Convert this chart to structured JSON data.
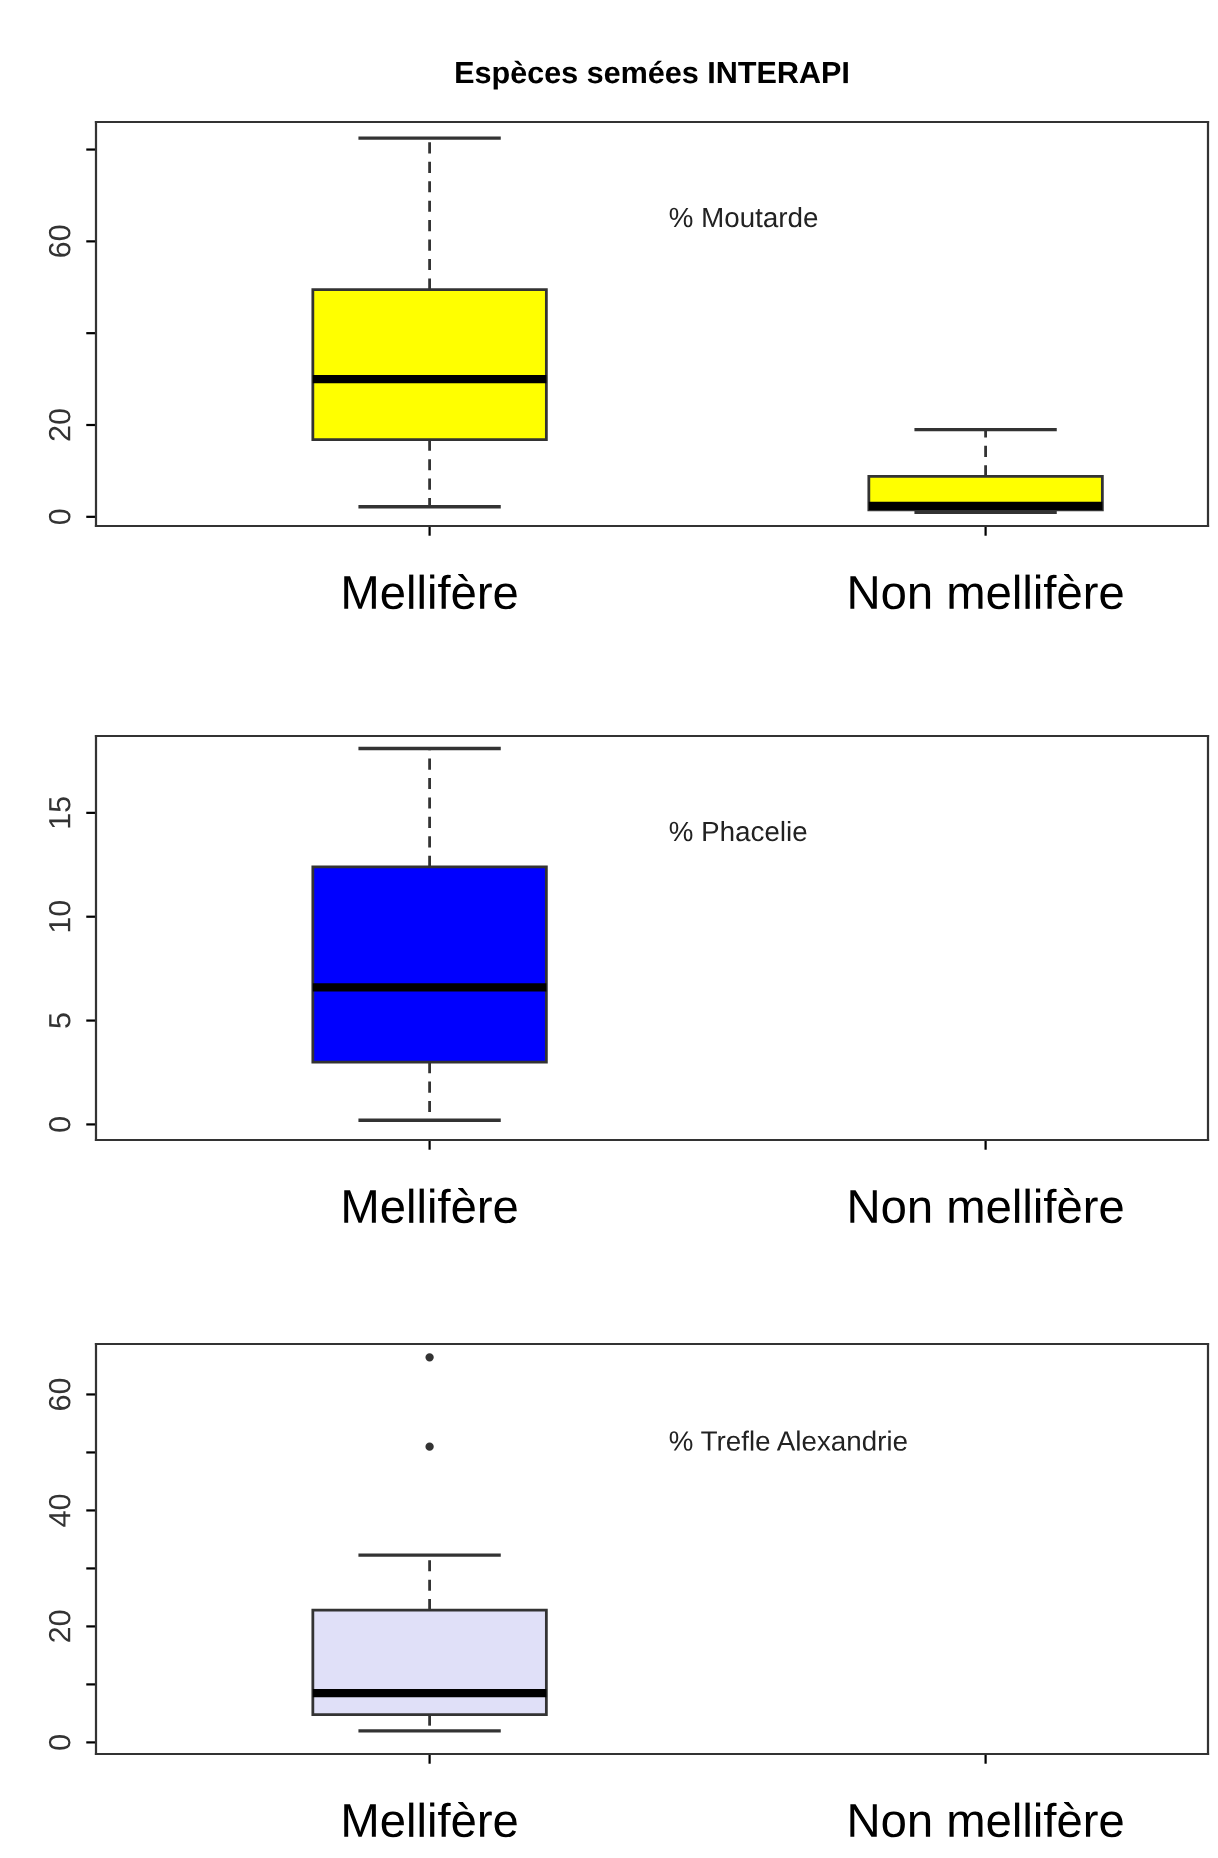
{
  "chart_data": [
    {
      "type": "box",
      "title": "Espèces semées INTERAPI",
      "categories": [
        "Mellifère",
        "Non mellifère"
      ],
      "annotations": [
        "% Moutarde"
      ],
      "ylim": [
        -2,
        86
      ],
      "yticks": [
        0,
        20,
        {
          "value": 40,
          "label": null
        },
        60,
        {
          "value": 80,
          "label": null
        }
      ],
      "series": [
        {
          "color": "#ffff00",
          "boxes": [
            {
              "low": 2.2,
              "q1": 16.8,
              "median": 30,
              "q3": 49.5,
              "high": 82.5
            },
            {
              "low": 1,
              "q1": 1.5,
              "median": 2.4,
              "q3": 8.8,
              "high": 19
            }
          ]
        }
      ]
    },
    {
      "type": "box",
      "categories": [
        "Mellifère",
        "Non mellifère"
      ],
      "annotations": [
        "% Phacelie"
      ],
      "ylim": [
        -0.75,
        18.7
      ],
      "yticks": [
        0,
        5,
        10,
        15
      ],
      "series": [
        {
          "color": "#0000ff",
          "boxes": [
            {
              "low": 0.2,
              "q1": 3.0,
              "median": 6.6,
              "q3": 12.4,
              "high": 18.1
            },
            null
          ]
        }
      ]
    },
    {
      "type": "box",
      "categories": [
        "Mellifère",
        "Non mellifère"
      ],
      "annotations": [
        "% Trefle Alexandrie"
      ],
      "ylim": [
        -2,
        68.7
      ],
      "yticks": [
        0,
        {
          "value": 10,
          "label": null
        },
        20,
        {
          "value": 30,
          "label": null
        },
        40,
        {
          "value": 50,
          "label": null
        },
        60
      ],
      "series": [
        {
          "color": "#e0e0f8",
          "boxes": [
            {
              "low": 2,
              "q1": 4.8,
              "median": 8.5,
              "q3": 22.8,
              "high": 32.3,
              "outliers": [
                51,
                66.4
              ]
            },
            null
          ]
        }
      ]
    }
  ]
}
